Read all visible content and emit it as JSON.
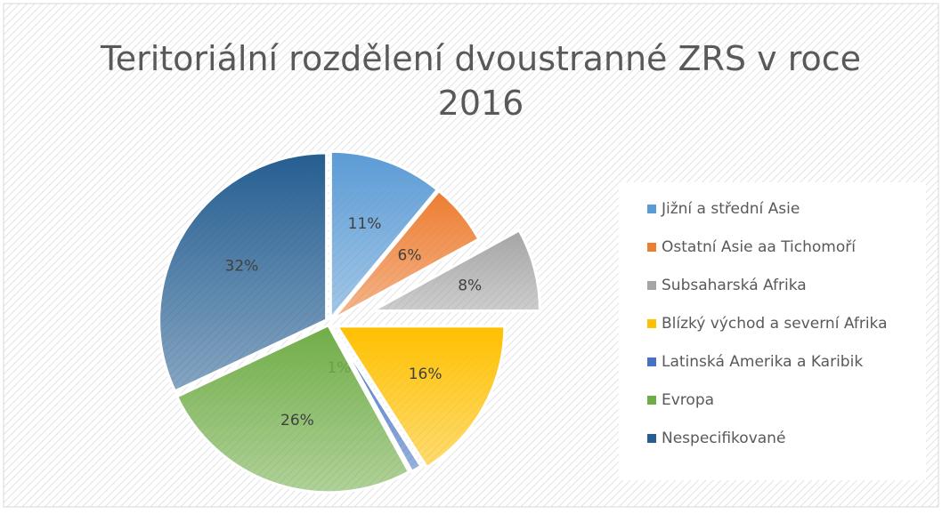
{
  "chart_data": {
    "type": "pie",
    "title": "Teritoriální rozdělení dvoustranné ZRS v roce 2016",
    "categories": [
      "Jižní a střední Asie",
      "Ostatní Asie aa Tichomoří",
      "Subsaharská Afrika",
      "Blízký východ a severní Afrika",
      "Latinská Amerika a Karibik",
      "Evropa",
      "Nespecifikované"
    ],
    "values": [
      11,
      6,
      8,
      16,
      1,
      26,
      32
    ],
    "value_labels": [
      "11%",
      "6%",
      "8%",
      "16%",
      "1%",
      "26%",
      "32%"
    ],
    "colors": [
      "#5b9bd5",
      "#ed7d31",
      "#a5a5a5",
      "#ffc000",
      "#4472c4",
      "#70ad47",
      "#255e91"
    ],
    "legend": "right"
  }
}
